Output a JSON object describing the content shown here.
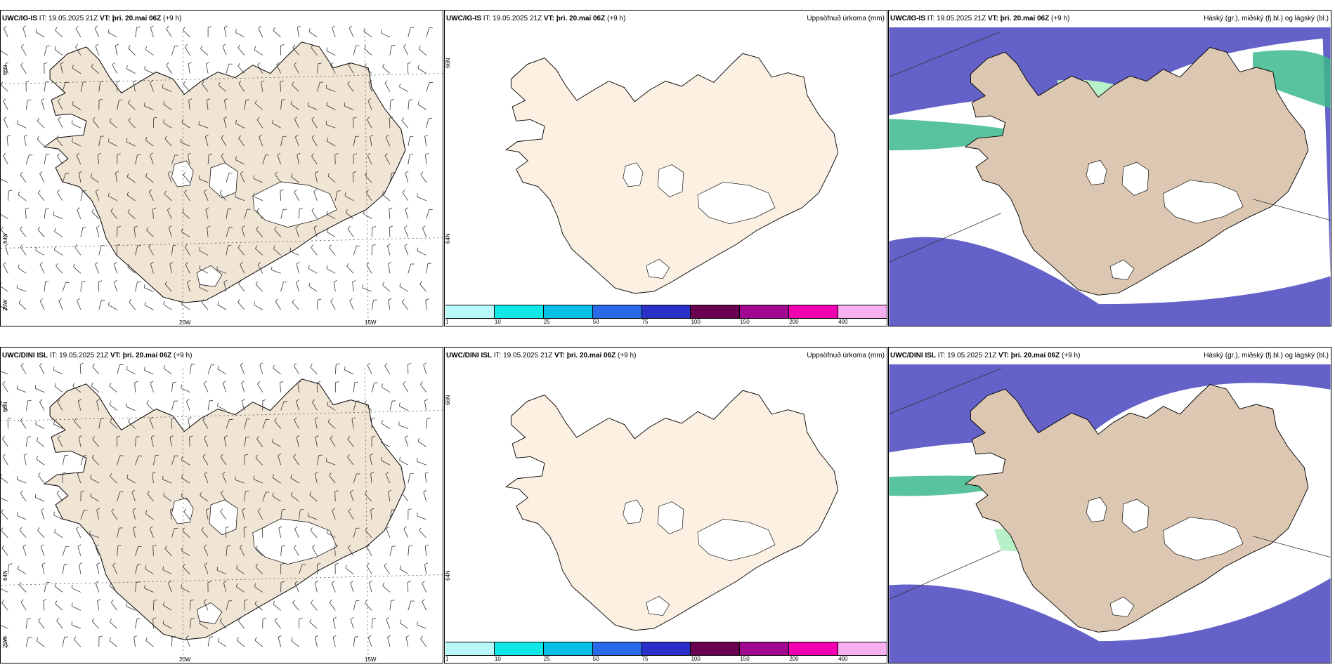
{
  "rows": [
    {
      "model": "UWC/IG-IS",
      "it": "IT: 19.05.2025 21Z",
      "vt_prefix": "VT:",
      "vt": "þri. 20.maí 06Z",
      "lead": "(+9 h)"
    },
    {
      "model": "UWC/DINI ISL",
      "it": "IT: 19.05.2025 21Z",
      "vt_prefix": "VT:",
      "vt": "þri. 20.maí 06Z",
      "lead": "(+9 h)"
    }
  ],
  "panel_titles": {
    "precip": "Uppsöfnuð úrkoma (mm)",
    "clouds": "Háský (gr.), miðský (fj.bl.) og lágský (bl.)"
  },
  "grid_labels": {
    "lat_66": "66N",
    "lat_64": "64N",
    "lon_25": "25W",
    "lon_20": "20W",
    "lon_15": "15W"
  },
  "colorbar": {
    "ticks": [
      "1",
      "10",
      "25",
      "50",
      "75",
      "100",
      "150",
      "200",
      "400"
    ],
    "colors": [
      "#b8f8f8",
      "#10e8e8",
      "#08c0e8",
      "#2a6ae8",
      "#2a30c8",
      "#6a0050",
      "#a00890",
      "#f000b0",
      "#f8b0f0"
    ]
  },
  "colors": {
    "land": "#f0e4d4",
    "land_light": "#fbf0e2",
    "sea_cloud": "#6461c8",
    "mid_cloud": "#3cb88c",
    "high_cloud": "#b8f0c8"
  }
}
